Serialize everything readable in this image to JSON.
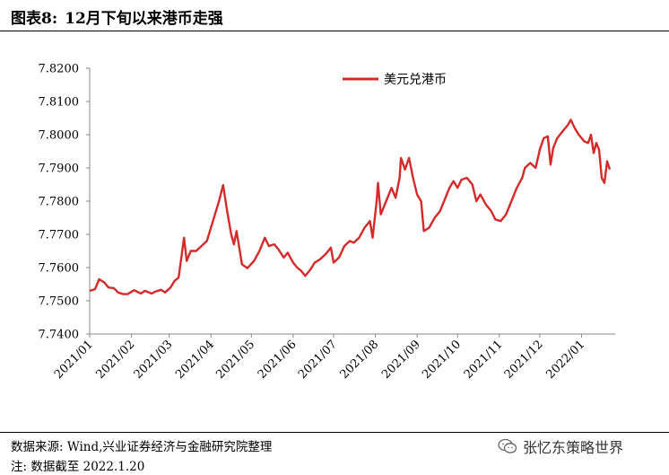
{
  "figure": {
    "label": "图表8:",
    "title": "12月下旬以来港币走强"
  },
  "chart_data": {
    "type": "line",
    "title": "",
    "xlabel": "",
    "ylabel": "",
    "ylim": [
      7.74,
      7.82
    ],
    "y_ticks": [
      "7.7400",
      "7.7500",
      "7.7600",
      "7.7700",
      "7.7800",
      "7.7900",
      "7.8000",
      "7.8100",
      "7.8200"
    ],
    "x_ticks": [
      "2021/01",
      "2021/02",
      "2021/03",
      "2021/04",
      "2021/05",
      "2021/06",
      "2021/07",
      "2021/08",
      "2021/09",
      "2021/10",
      "2021/11",
      "2021/12",
      "2022/01"
    ],
    "legend": "top-left",
    "grid": false,
    "series": [
      {
        "name": "美元兑港币",
        "color": "#d42a2a",
        "points": [
          [
            "2021-01-01",
            7.753
          ],
          [
            "2021-01-05",
            7.7535
          ],
          [
            "2021-01-08",
            7.7565
          ],
          [
            "2021-01-12",
            7.7555
          ],
          [
            "2021-01-15",
            7.754
          ],
          [
            "2021-01-19",
            7.7538
          ],
          [
            "2021-01-22",
            7.7525
          ],
          [
            "2021-01-26",
            7.752
          ],
          [
            "2021-01-29",
            7.752
          ],
          [
            "2021-02-03",
            7.7532
          ],
          [
            "2021-02-08",
            7.7522
          ],
          [
            "2021-02-11",
            7.753
          ],
          [
            "2021-02-16",
            7.7522
          ],
          [
            "2021-02-19",
            7.7528
          ],
          [
            "2021-02-23",
            7.7533
          ],
          [
            "2021-02-26",
            7.7525
          ],
          [
            "2021-03-02",
            7.754
          ],
          [
            "2021-03-05",
            7.756
          ],
          [
            "2021-03-08",
            7.757
          ],
          [
            "2021-03-10",
            7.763
          ],
          [
            "2021-03-12",
            7.769
          ],
          [
            "2021-03-14",
            7.762
          ],
          [
            "2021-03-17",
            7.765
          ],
          [
            "2021-03-21",
            7.765
          ],
          [
            "2021-03-25",
            7.7665
          ],
          [
            "2021-03-29",
            7.768
          ],
          [
            "2021-04-01",
            7.772
          ],
          [
            "2021-04-04",
            7.776
          ],
          [
            "2021-04-07",
            7.78
          ],
          [
            "2021-04-10",
            7.7848
          ],
          [
            "2021-04-13",
            7.777
          ],
          [
            "2021-04-16",
            7.77
          ],
          [
            "2021-04-18",
            7.767
          ],
          [
            "2021-04-20",
            7.771
          ],
          [
            "2021-04-24",
            7.761
          ],
          [
            "2021-04-28",
            7.7598
          ],
          [
            "2021-05-03",
            7.762
          ],
          [
            "2021-05-07",
            7.765
          ],
          [
            "2021-05-11",
            7.769
          ],
          [
            "2021-05-14",
            7.7665
          ],
          [
            "2021-05-18",
            7.767
          ],
          [
            "2021-05-21",
            7.7655
          ],
          [
            "2021-05-25",
            7.763
          ],
          [
            "2021-05-28",
            7.7645
          ],
          [
            "2021-06-01",
            7.7615
          ],
          [
            "2021-06-04",
            7.76
          ],
          [
            "2021-06-07",
            7.759
          ],
          [
            "2021-06-10",
            7.7575
          ],
          [
            "2021-06-14",
            7.7595
          ],
          [
            "2021-06-17",
            7.7615
          ],
          [
            "2021-06-21",
            7.7625
          ],
          [
            "2021-06-25",
            7.764
          ],
          [
            "2021-06-29",
            7.766
          ],
          [
            "2021-07-01",
            7.7615
          ],
          [
            "2021-07-05",
            7.763
          ],
          [
            "2021-07-09",
            7.7665
          ],
          [
            "2021-07-13",
            7.768
          ],
          [
            "2021-07-16",
            7.7675
          ],
          [
            "2021-07-20",
            7.769
          ],
          [
            "2021-07-24",
            7.772
          ],
          [
            "2021-07-28",
            7.774
          ],
          [
            "2021-07-30",
            7.769
          ],
          [
            "2021-08-02",
            7.78
          ],
          [
            "2021-08-03",
            7.7855
          ],
          [
            "2021-08-05",
            7.776
          ],
          [
            "2021-08-09",
            7.78
          ],
          [
            "2021-08-13",
            7.784
          ],
          [
            "2021-08-16",
            7.781
          ],
          [
            "2021-08-19",
            7.787
          ],
          [
            "2021-08-20",
            7.793
          ],
          [
            "2021-08-23",
            7.7895
          ],
          [
            "2021-08-26",
            7.793
          ],
          [
            "2021-08-29",
            7.787
          ],
          [
            "2021-09-01",
            7.782
          ],
          [
            "2021-09-04",
            7.78
          ],
          [
            "2021-09-06",
            7.771
          ],
          [
            "2021-09-10",
            7.772
          ],
          [
            "2021-09-14",
            7.775
          ],
          [
            "2021-09-18",
            7.777
          ],
          [
            "2021-09-21",
            7.78
          ],
          [
            "2021-09-25",
            7.784
          ],
          [
            "2021-09-28",
            7.786
          ],
          [
            "2021-10-01",
            7.784
          ],
          [
            "2021-10-04",
            7.7865
          ],
          [
            "2021-10-08",
            7.787
          ],
          [
            "2021-10-12",
            7.785
          ],
          [
            "2021-10-15",
            7.78
          ],
          [
            "2021-10-18",
            7.782
          ],
          [
            "2021-10-22",
            7.779
          ],
          [
            "2021-10-26",
            7.777
          ],
          [
            "2021-10-29",
            7.7745
          ],
          [
            "2021-11-02",
            7.774
          ],
          [
            "2021-11-06",
            7.776
          ],
          [
            "2021-11-10",
            7.78
          ],
          [
            "2021-11-14",
            7.784
          ],
          [
            "2021-11-18",
            7.787
          ],
          [
            "2021-11-20",
            7.79
          ],
          [
            "2021-11-24",
            7.7915
          ],
          [
            "2021-11-28",
            7.79
          ],
          [
            "2021-12-01",
            7.7955
          ],
          [
            "2021-12-04",
            7.799
          ],
          [
            "2021-12-07",
            7.7995
          ],
          [
            "2021-12-09",
            7.791
          ],
          [
            "2021-12-11",
            7.796
          ],
          [
            "2021-12-14",
            7.799
          ],
          [
            "2021-12-18",
            7.801
          ],
          [
            "2021-12-22",
            7.803
          ],
          [
            "2021-12-24",
            7.8045
          ],
          [
            "2021-12-27",
            7.802
          ],
          [
            "2021-12-30",
            7.8
          ],
          [
            "2022-01-03",
            7.798
          ],
          [
            "2022-01-06",
            7.7975
          ],
          [
            "2022-01-08",
            7.8
          ],
          [
            "2022-01-10",
            7.7945
          ],
          [
            "2022-01-12",
            7.7975
          ],
          [
            "2022-01-14",
            7.7955
          ],
          [
            "2022-01-16",
            7.787
          ],
          [
            "2022-01-18",
            7.7855
          ],
          [
            "2022-01-20",
            7.792
          ],
          [
            "2022-01-22",
            7.7895
          ]
        ]
      }
    ]
  },
  "footer": {
    "source": "数据来源: Wind,兴业证券经济与金融研究院整理",
    "note": "注: 数据截至 2022.1.20",
    "watermark": "张忆东策略世界"
  },
  "colors": {
    "line": "#d42a2a",
    "axis": "#888888",
    "text": "#000000"
  },
  "icons": {
    "watermark": "wechat-icon"
  }
}
